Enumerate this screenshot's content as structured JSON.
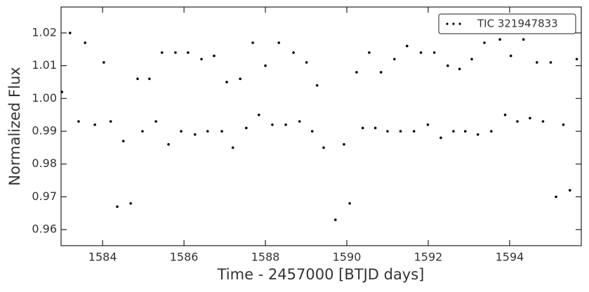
{
  "chart_data": {
    "type": "scatter",
    "xlabel": "Time - 2457000 [BTJD days]",
    "ylabel": "Normalized Flux",
    "xlim": [
      1582.98,
      1595.76
    ],
    "ylim": [
      0.9551,
      1.0279
    ],
    "xticks": [
      1584,
      1586,
      1588,
      1590,
      1592,
      1594
    ],
    "yticks": [
      0.96,
      0.97,
      0.98,
      0.99,
      {
        "value": 1,
        "label": "1.00"
      },
      1.01,
      1.02
    ],
    "legend": "upper right",
    "series": [
      {
        "name": "TIC 321947833",
        "color": "#000000",
        "x": [
          1583.0,
          1583.2,
          1583.41,
          1583.57,
          1583.81,
          1584.03,
          1584.2,
          1584.36,
          1584.51,
          1584.69,
          1584.86,
          1584.98,
          1585.15,
          1585.31,
          1585.46,
          1585.62,
          1585.79,
          1585.93,
          1586.1,
          1586.27,
          1586.43,
          1586.58,
          1586.74,
          1586.93,
          1587.05,
          1587.2,
          1587.38,
          1587.53,
          1587.69,
          1587.84,
          1588.0,
          1588.17,
          1588.33,
          1588.5,
          1588.69,
          1588.84,
          1589.01,
          1589.15,
          1589.27,
          1589.43,
          1589.72,
          1589.93,
          1590.07,
          1590.24,
          1590.39,
          1590.55,
          1590.7,
          1590.84,
          1591.0,
          1591.17,
          1591.32,
          1591.48,
          1591.65,
          1591.82,
          1591.99,
          1592.15,
          1592.31,
          1592.48,
          1592.62,
          1592.77,
          1592.91,
          1593.07,
          1593.22,
          1593.38,
          1593.55,
          1593.76,
          1593.89,
          1594.03,
          1594.19,
          1594.34,
          1594.5,
          1594.67,
          1594.82,
          1595.01,
          1595.14,
          1595.32,
          1595.48,
          1595.65
        ],
        "values": [
          1.002,
          1.02,
          0.993,
          1.017,
          0.992,
          1.011,
          0.993,
          0.967,
          0.987,
          0.968,
          1.006,
          0.99,
          1.006,
          0.993,
          1.014,
          0.986,
          1.014,
          0.99,
          1.014,
          0.989,
          1.012,
          0.99,
          1.013,
          0.99,
          1.005,
          0.985,
          1.006,
          0.991,
          1.017,
          0.995,
          1.01,
          0.992,
          1.017,
          0.992,
          1.014,
          0.993,
          1.011,
          0.99,
          1.004,
          0.985,
          0.963,
          0.986,
          0.968,
          1.008,
          0.991,
          1.014,
          0.991,
          1.008,
          0.99,
          1.012,
          0.99,
          1.016,
          0.99,
          1.014,
          0.992,
          1.014,
          0.988,
          1.01,
          0.99,
          1.009,
          0.99,
          1.012,
          0.989,
          1.017,
          0.99,
          1.018,
          0.995,
          1.013,
          0.993,
          1.018,
          0.994,
          1.011,
          0.993,
          1.011,
          0.97,
          0.992,
          0.972,
          1.012
        ]
      }
    ]
  }
}
